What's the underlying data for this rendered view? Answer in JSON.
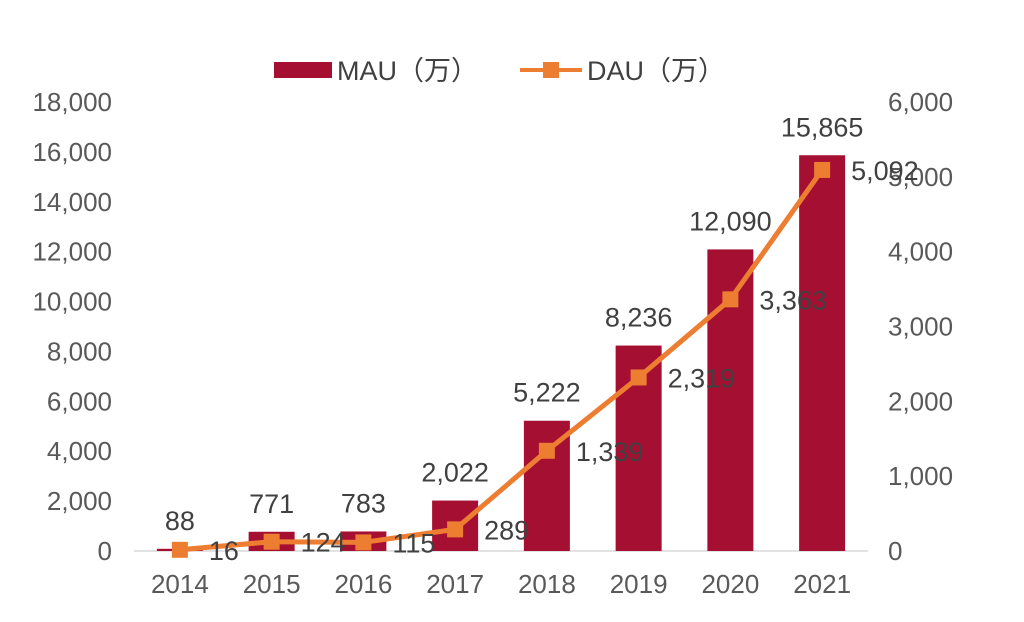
{
  "chart_data": {
    "type": "bar+line",
    "categories": [
      "2014",
      "2015",
      "2016",
      "2017",
      "2018",
      "2019",
      "2020",
      "2021"
    ],
    "series": [
      {
        "name": "MAU（万）",
        "type": "bar",
        "axis": "left",
        "values": [
          88,
          771,
          783,
          2022,
          5222,
          8236,
          12090,
          15865
        ],
        "value_labels": [
          "88",
          "771",
          "783",
          "2,022",
          "5,222",
          "8,236",
          "12,090",
          "15,865"
        ],
        "color": "#a50f32"
      },
      {
        "name": "DAU（万）",
        "type": "line",
        "axis": "right",
        "values": [
          16,
          124,
          115,
          289,
          1339,
          2319,
          3363,
          5092
        ],
        "value_labels": [
          "16",
          "124",
          "115",
          "289",
          "1,339",
          "2,319",
          "3,363",
          "5,092"
        ],
        "color": "#ed7d31"
      }
    ],
    "y_left": {
      "range": [
        0,
        18000
      ],
      "ticks": [
        0,
        2000,
        4000,
        6000,
        8000,
        10000,
        12000,
        14000,
        16000,
        18000
      ],
      "tick_labels": [
        "0",
        "2,000",
        "4,000",
        "6,000",
        "8,000",
        "10,000",
        "12,000",
        "14,000",
        "16,000",
        "18,000"
      ]
    },
    "y_right": {
      "range": [
        0,
        6000
      ],
      "ticks": [
        0,
        1000,
        2000,
        3000,
        4000,
        5000,
        6000
      ],
      "tick_labels": [
        "0",
        "1,000",
        "2,000",
        "3,000",
        "4,000",
        "5,000",
        "6,000"
      ]
    },
    "legend": {
      "position": "top-center",
      "entries": [
        "MAU（万）",
        "DAU（万）"
      ]
    },
    "grid": false
  }
}
